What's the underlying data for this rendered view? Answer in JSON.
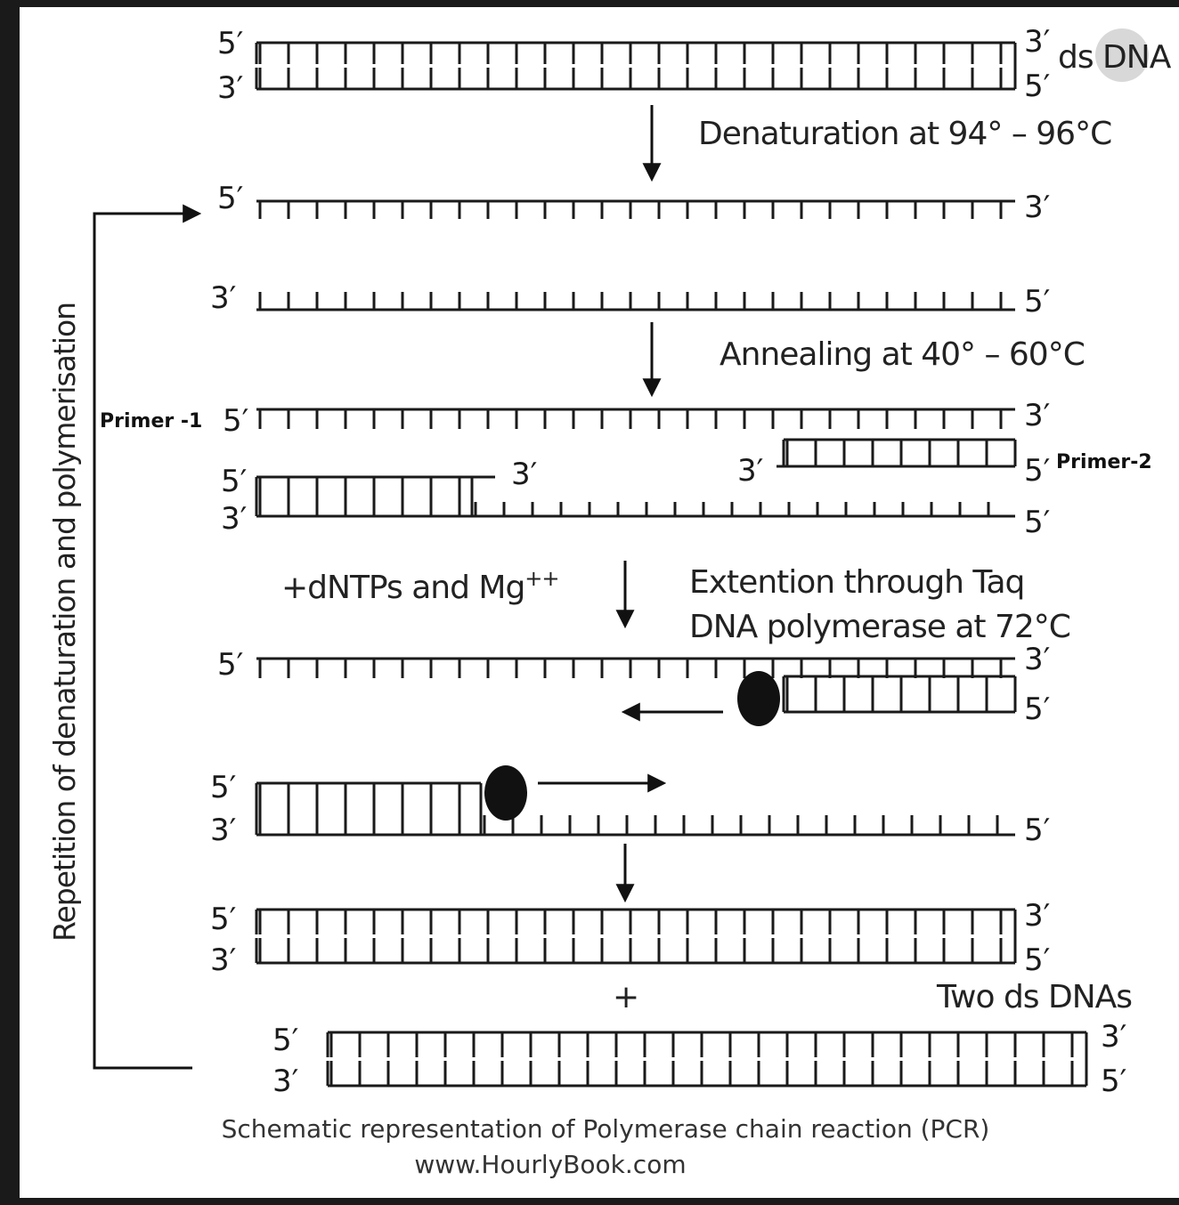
{
  "ends": {
    "five": "5′",
    "three": "3′"
  },
  "labels": {
    "ds_dna": "ds DNA",
    "denaturation": "Denaturation at 94° – 96°C",
    "annealing": "Annealing at 40° – 60°C",
    "primer1": "Primer -1",
    "primer2": "Primer-2",
    "dntps": "+dNTPs and Mg",
    "dntps_sup": "++",
    "extension_line1": "Extention through Taq",
    "extension_line2": "DNA polymerase at 72°C",
    "plus": "+",
    "two_ds": "Two ds DNAs",
    "repetition": "Repetition of denaturation and polymerisation"
  },
  "caption": {
    "title": "Schematic representation of Polymerase chain reaction (PCR)",
    "url": "www.HourlyBook.com"
  }
}
